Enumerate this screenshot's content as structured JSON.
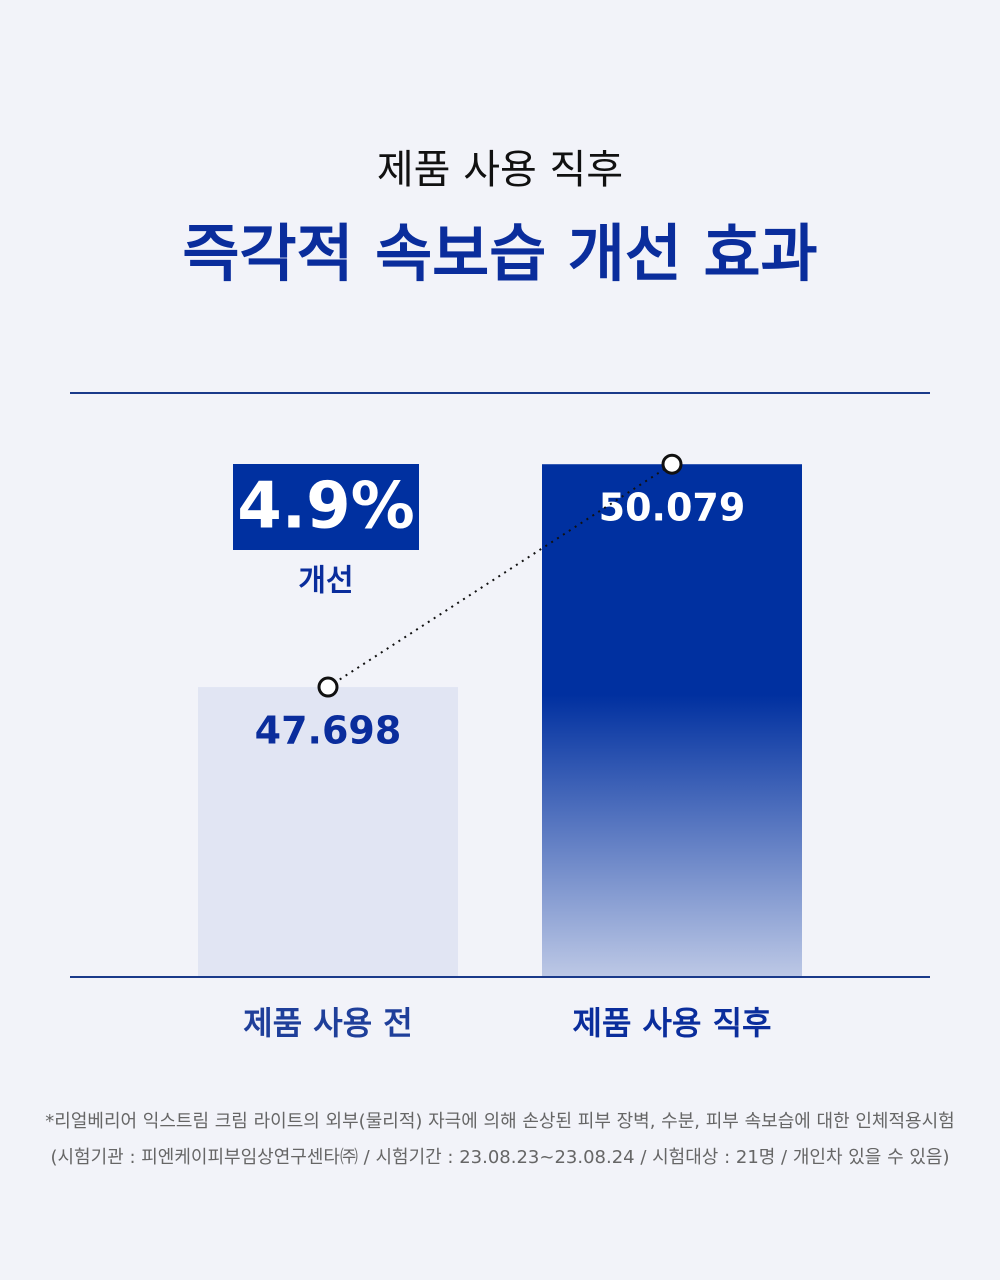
{
  "chart_data": {
    "type": "bar",
    "subtitle": "제품 사용 직후",
    "title": "즉각적 속보습 개선 효과",
    "categories": [
      "제품 사용 전",
      "제품 사용 직후"
    ],
    "values": [
      47.698,
      50.079
    ],
    "colors": [
      "#e1e5f3",
      "#0030a0"
    ],
    "ylim": [
      44.6,
      50.84
    ],
    "annotation": "4.9%",
    "annotation_note": "개선",
    "footnotes": [
      "*리얼베리어 익스트림 크림 라이트의 외부(물리적) 자극에 의해 손상된 피부 장벽, 수분, 피부 속보습에 대한 인체적용시험",
      "(시험기관 : 피엔케이피부임상연구센타㈜ / 시험기간 : 23.08.23~23.08.24 / 시험대상 : 21명 / 개인차 있을 수 있음)"
    ]
  }
}
